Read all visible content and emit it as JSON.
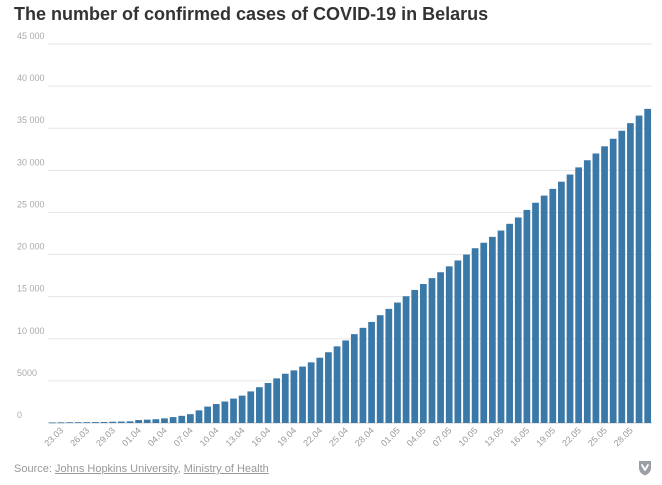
{
  "chart_data": {
    "type": "bar",
    "title": "The number of confirmed cases of COVID-19 in Belarus",
    "xlabel": "",
    "ylabel": "",
    "ylim": [
      0,
      45000
    ],
    "yticks": [
      "0",
      "5000",
      "10 000",
      "15 000",
      "20 000",
      "25 000",
      "30 000",
      "35 000",
      "40 000",
      "45 000"
    ],
    "grid": true,
    "bar_color": "#3a78a8",
    "categories": [
      "22.03",
      "23.03",
      "24.03",
      "25.03",
      "26.03",
      "27.03",
      "28.03",
      "29.03",
      "30.03",
      "31.03",
      "01.04",
      "02.04",
      "03.04",
      "04.04",
      "05.04",
      "06.04",
      "07.04",
      "08.04",
      "09.04",
      "10.04",
      "11.04",
      "12.04",
      "13.04",
      "14.04",
      "15.04",
      "16.04",
      "17.04",
      "18.04",
      "19.04",
      "20.04",
      "21.04",
      "22.04",
      "23.04",
      "24.04",
      "25.04",
      "26.04",
      "27.04",
      "28.04",
      "29.04",
      "30.04",
      "01.05",
      "02.05",
      "03.05",
      "04.05",
      "05.05",
      "06.05",
      "07.05",
      "08.05",
      "09.05",
      "10.05",
      "11.05",
      "12.05",
      "13.05",
      "14.05",
      "15.05",
      "16.05",
      "17.05",
      "18.05",
      "19.05",
      "20.05",
      "21.05",
      "22.05",
      "23.05",
      "24.05",
      "25.05",
      "26.05",
      "27.05",
      "28.05",
      "29.05",
      "30.05"
    ],
    "xtick_labels": [
      "23.03",
      "26.03",
      "29.03",
      "01.04",
      "04.04",
      "07.04",
      "10.04",
      "13.04",
      "16.04",
      "19.04",
      "22.04",
      "25.04",
      "28.04",
      "01.05",
      "04.05",
      "07.05",
      "10.05",
      "13.05",
      "16.05",
      "19.05",
      "22.05",
      "25.05",
      "28.05"
    ],
    "values": [
      70,
      80,
      90,
      95,
      100,
      110,
      120,
      150,
      170,
      200,
      350,
      400,
      450,
      550,
      700,
      850,
      1050,
      1500,
      1950,
      2250,
      2550,
      2900,
      3250,
      3750,
      4250,
      4750,
      5300,
      5850,
      6250,
      6700,
      7200,
      7750,
      8400,
      9100,
      9800,
      10550,
      11300,
      12000,
      12800,
      13550,
      14300,
      15050,
      15800,
      16500,
      17200,
      17900,
      18600,
      19300,
      20000,
      20750,
      21400,
      22100,
      22850,
      23650,
      24400,
      25300,
      26150,
      27000,
      27800,
      28650,
      29500,
      30350,
      31200,
      32000,
      32850,
      33750,
      34700,
      35600,
      36500,
      37300
    ]
  },
  "footer": {
    "source_prefix": "Source: ",
    "source_link_1": "Johns Hopkins University",
    "separator": ", ",
    "source_link_2": "Ministry of Health"
  },
  "logo_icon": "shield-arrow-logo-icon"
}
